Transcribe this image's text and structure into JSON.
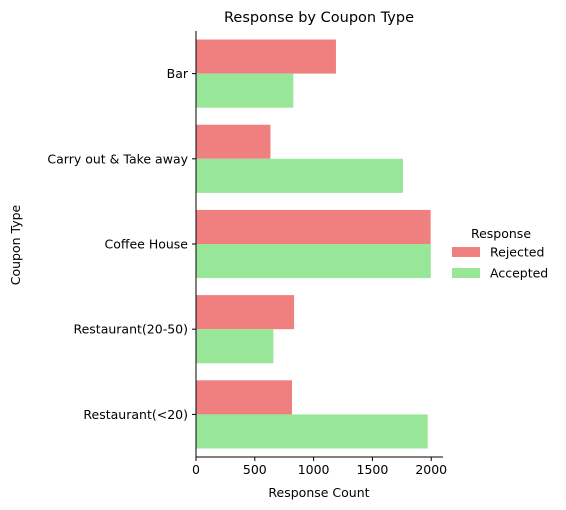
{
  "chart_data": {
    "type": "bar",
    "orientation": "horizontal",
    "title": "Response by Coupon Type",
    "xlabel": "Response Count",
    "ylabel": "Coupon Type",
    "xlim": [
      0,
      2100
    ],
    "xticks": [
      0,
      500,
      1000,
      1500,
      2000
    ],
    "categories": [
      "Bar",
      "Carry out & Take away",
      "Coffee House",
      "Restaurant(20-50)",
      "Restaurant(<20)"
    ],
    "series": [
      {
        "name": "Rejected",
        "color": "#f08080",
        "values": [
          1190,
          633,
          1995,
          834,
          816
        ]
      },
      {
        "name": "Accepted",
        "color": "#98e698",
        "values": [
          827,
          1760,
          1996,
          658,
          1970
        ]
      }
    ],
    "legend": {
      "title": "Response",
      "placement": "right"
    },
    "grid": false
  }
}
